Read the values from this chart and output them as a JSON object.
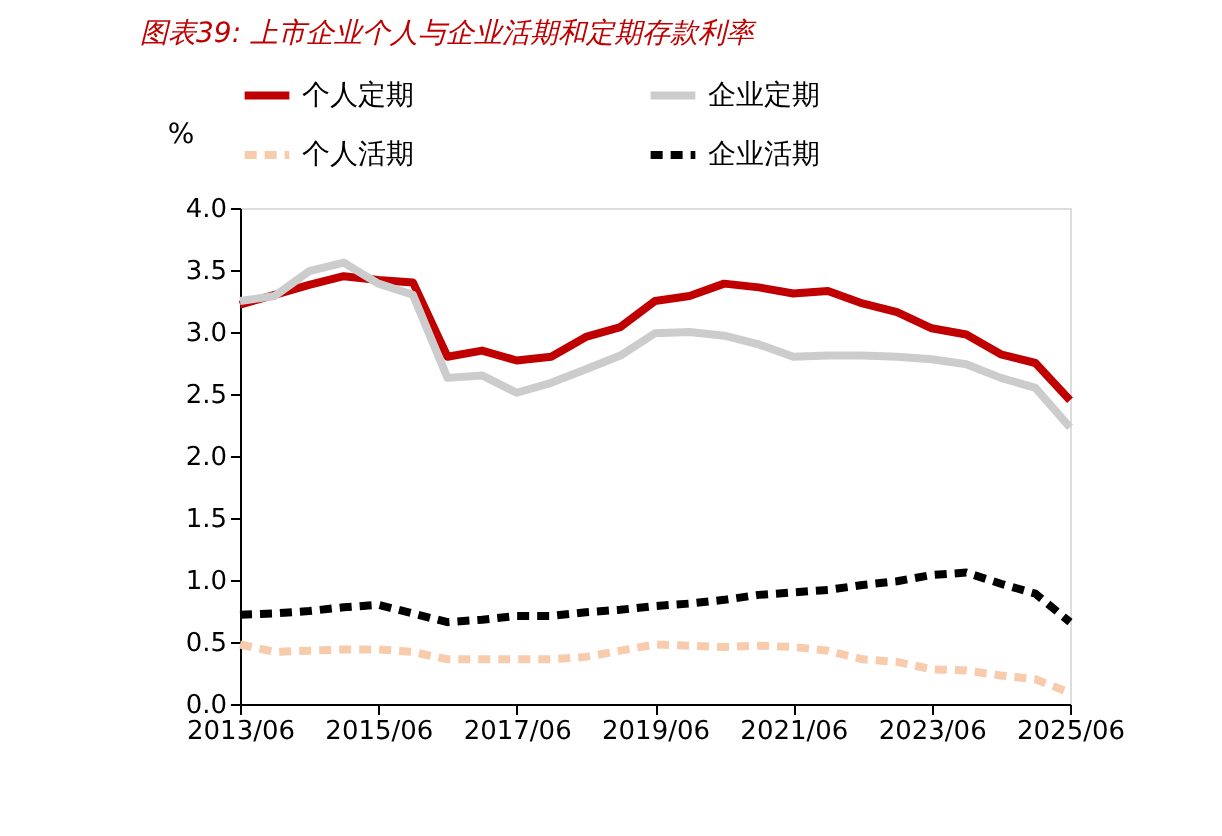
{
  "chart_data": {
    "type": "line",
    "title": "图表39: 上市企业个人与企业活期和定期存款利率",
    "ylabel": "%",
    "categories": [
      "2013/06",
      null,
      null,
      null,
      "2015/06",
      null,
      null,
      null,
      "2017/06",
      null,
      null,
      null,
      "2019/06",
      null,
      null,
      null,
      "2021/06",
      null,
      null,
      null,
      "2023/06",
      null,
      null,
      null,
      "2025/06"
    ],
    "series": [
      {
        "name": "个人定期",
        "color": "#c00000",
        "line_style": "solid",
        "values": [
          3.22,
          3.3,
          3.38,
          3.45,
          3.42,
          3.4,
          2.8,
          2.85,
          2.77,
          2.8,
          2.96,
          3.04,
          3.25,
          3.29,
          3.39,
          3.36,
          3.31,
          3.33,
          3.23,
          3.16,
          3.03,
          2.98,
          2.82,
          2.75,
          2.45
        ]
      },
      {
        "name": "企业定期",
        "color": "#cccccc",
        "line_style": "solid",
        "values": [
          3.25,
          3.29,
          3.49,
          3.56,
          3.39,
          3.3,
          2.63,
          2.65,
          2.51,
          2.59,
          2.7,
          2.81,
          2.99,
          3.0,
          2.97,
          2.9,
          2.8,
          2.81,
          2.81,
          2.8,
          2.78,
          2.74,
          2.63,
          2.55,
          2.23
        ]
      },
      {
        "name": "个人活期",
        "color": "#f8cbad",
        "line_style": "dashed",
        "values": [
          0.48,
          0.42,
          0.43,
          0.44,
          0.44,
          0.42,
          0.36,
          0.36,
          0.36,
          0.36,
          0.38,
          0.43,
          0.48,
          0.47,
          0.46,
          0.47,
          0.46,
          0.43,
          0.36,
          0.34,
          0.28,
          0.27,
          0.23,
          0.2,
          0.09
        ]
      },
      {
        "name": "企业活期",
        "color": "#000000",
        "line_style": "dashed",
        "values": [
          0.72,
          0.73,
          0.75,
          0.78,
          0.8,
          0.73,
          0.66,
          0.68,
          0.71,
          0.71,
          0.74,
          0.76,
          0.79,
          0.81,
          0.84,
          0.88,
          0.9,
          0.92,
          0.96,
          0.99,
          1.04,
          1.06,
          0.97,
          0.89,
          0.66
        ]
      }
    ],
    "ylim": [
      0,
      4
    ],
    "yticks": [
      {
        "value": 0,
        "label": "0.0"
      },
      0.5,
      {
        "value": 1,
        "label": "1.0"
      },
      1.5,
      {
        "value": 2,
        "label": "2.0"
      },
      2.5,
      {
        "value": 3,
        "label": "3.0"
      },
      3.5,
      {
        "value": 4,
        "label": "4.0"
      }
    ],
    "grid": false,
    "legend": "top",
    "marker": "none"
  }
}
